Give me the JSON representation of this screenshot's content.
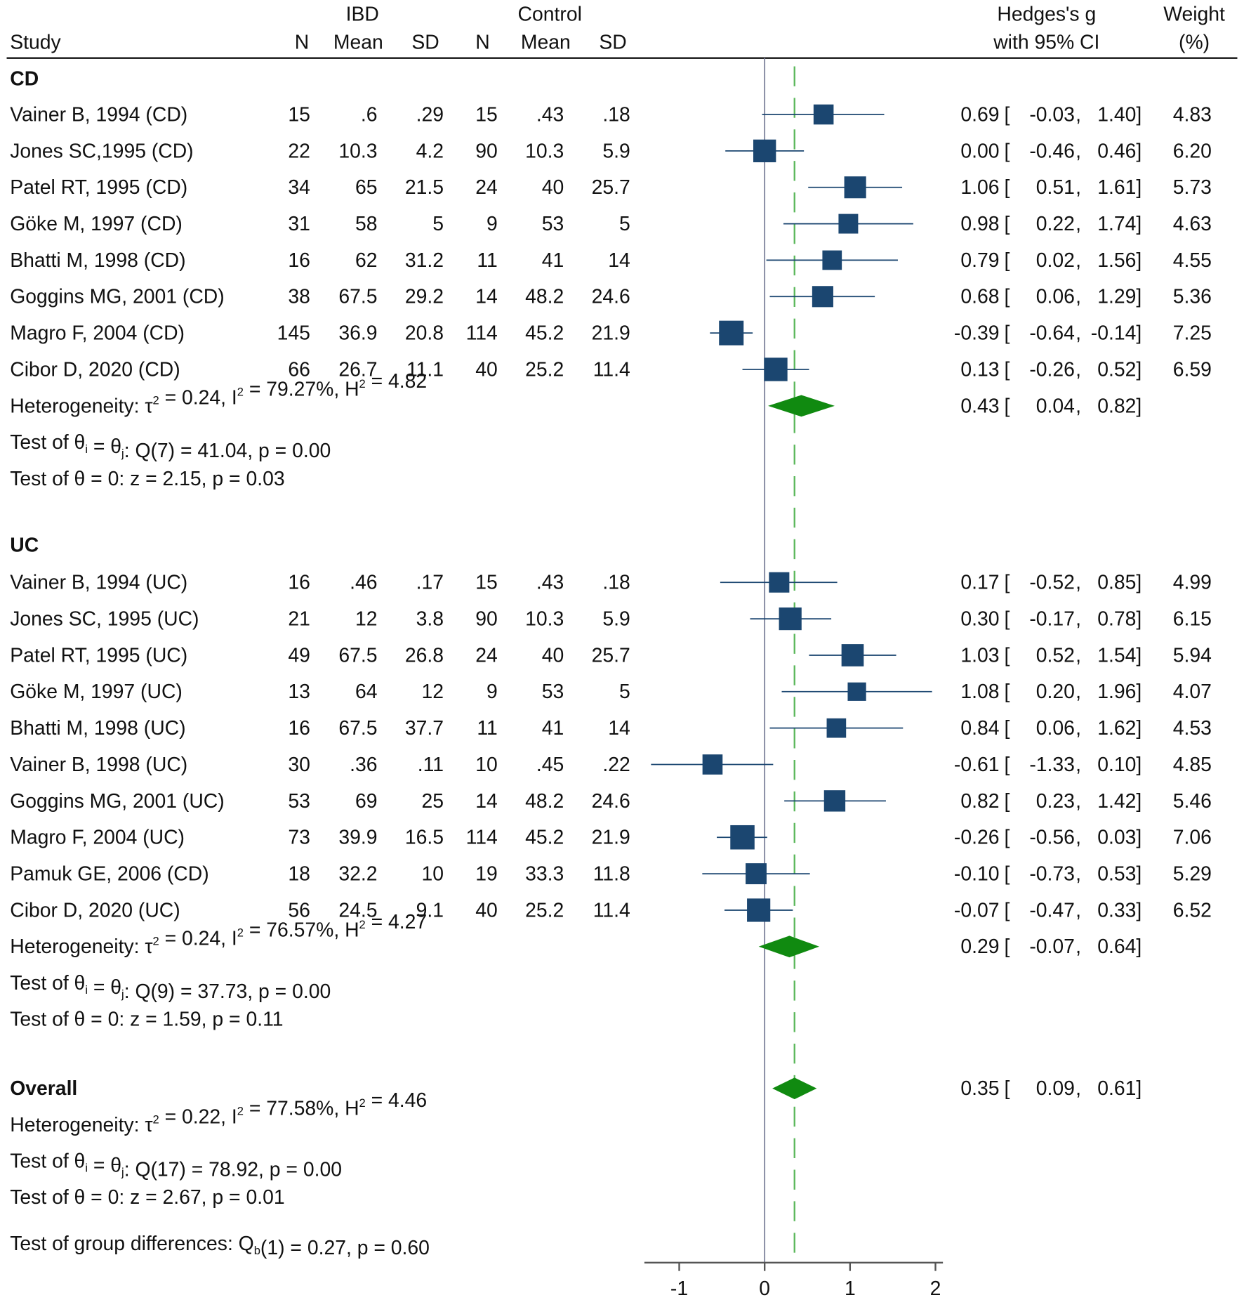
{
  "chart_data": {
    "type": "forest",
    "headers": {
      "study": "Study",
      "ibd": "IBD",
      "control": "Control",
      "n": "N",
      "mean": "Mean",
      "sd": "SD",
      "effect1": "Hedges's g",
      "effect2": "with 95% CI",
      "weight1": "Weight",
      "weight2": "(%)"
    },
    "x_ticks": [
      -1,
      0,
      1,
      2
    ],
    "xlim": [
      -1.3,
      2.05
    ],
    "overall_line": 0.35,
    "colors": {
      "square": "#1b4670",
      "diamond": "#108a10",
      "dash": "#5cb85c",
      "zero": "#7a7f9a"
    },
    "groups": [
      {
        "label": "CD",
        "studies": [
          {
            "name": "Vainer B, 1994 (CD)",
            "n1": "15",
            "m1": ".6",
            "sd1": ".29",
            "n2": "15",
            "m2": ".43",
            "sd2": ".18",
            "g": 0.69,
            "lo": -0.03,
            "hi": 1.4,
            "w": 4.83,
            "gs": "0.69",
            "los": "-0.03",
            "his": "1.40",
            "ws": "4.83"
          },
          {
            "name": "Jones SC,1995 (CD)",
            "n1": "22",
            "m1": "10.3",
            "sd1": "4.2",
            "n2": "90",
            "m2": "10.3",
            "sd2": "5.9",
            "g": 0.0,
            "lo": -0.46,
            "hi": 0.46,
            "w": 6.2,
            "gs": "0.00",
            "los": "-0.46",
            "his": "0.46",
            "ws": "6.20"
          },
          {
            "name": "Patel RT, 1995 (CD)",
            "n1": "34",
            "m1": "65",
            "sd1": "21.5",
            "n2": "24",
            "m2": "40",
            "sd2": "25.7",
            "g": 1.06,
            "lo": 0.51,
            "hi": 1.61,
            "w": 5.73,
            "gs": "1.06",
            "los": "0.51",
            "his": "1.61",
            "ws": "5.73"
          },
          {
            "name": "Göke M, 1997 (CD)",
            "n1": "31",
            "m1": "58",
            "sd1": "5",
            "n2": "9",
            "m2": "53",
            "sd2": "5",
            "g": 0.98,
            "lo": 0.22,
            "hi": 1.74,
            "w": 4.63,
            "gs": "0.98",
            "los": "0.22",
            "his": "1.74",
            "ws": "4.63"
          },
          {
            "name": "Bhatti M, 1998 (CD)",
            "n1": "16",
            "m1": "62",
            "sd1": "31.2",
            "n2": "11",
            "m2": "41",
            "sd2": "14",
            "g": 0.79,
            "lo": 0.02,
            "hi": 1.56,
            "w": 4.55,
            "gs": "0.79",
            "los": "0.02",
            "his": "1.56",
            "ws": "4.55"
          },
          {
            "name": "Goggins MG, 2001 (CD)",
            "n1": "38",
            "m1": "67.5",
            "sd1": "29.2",
            "n2": "14",
            "m2": "48.2",
            "sd2": "24.6",
            "g": 0.68,
            "lo": 0.06,
            "hi": 1.29,
            "w": 5.36,
            "gs": "0.68",
            "los": "0.06",
            "his": "1.29",
            "ws": "5.36"
          },
          {
            "name": "Magro F, 2004 (CD)",
            "n1": "145",
            "m1": "36.9",
            "sd1": "20.8",
            "n2": "114",
            "m2": "45.2",
            "sd2": "21.9",
            "g": -0.39,
            "lo": -0.64,
            "hi": -0.14,
            "w": 7.25,
            "gs": "-0.39",
            "los": "-0.64",
            "his": "-0.14",
            "ws": "7.25"
          },
          {
            "name": "Cibor D, 2020 (CD)",
            "n1": "66",
            "m1": "26.7",
            "sd1": "11.1",
            "n2": "40",
            "m2": "25.2",
            "sd2": "11.4",
            "g": 0.13,
            "lo": -0.26,
            "hi": 0.52,
            "w": 6.59,
            "gs": "0.13",
            "los": "-0.26",
            "his": "0.52",
            "ws": "6.59"
          }
        ],
        "pooled": {
          "g": 0.43,
          "lo": 0.04,
          "hi": 0.82,
          "gs": "0.43",
          "los": "0.04",
          "his": "0.82"
        },
        "stats": [
          [
            {
              "t": "Heterogeneity: τ"
            },
            {
              "sup": "2"
            },
            {
              "t": " = 0.24, I"
            },
            {
              "sup": "2"
            },
            {
              "t": " = 79.27%, H"
            },
            {
              "sup": "2"
            },
            {
              "t": " = 4.82"
            }
          ],
          [
            {
              "t": "Test of θ"
            },
            {
              "sub": "i"
            },
            {
              "t": " = θ"
            },
            {
              "sub": "j"
            },
            {
              "t": ": Q(7) = 41.04, p = 0.00"
            }
          ],
          [
            {
              "t": "Test of θ = 0: z = 2.15, p = 0.03"
            }
          ]
        ]
      },
      {
        "label": "UC",
        "studies": [
          {
            "name": "Vainer B, 1994 (UC)",
            "n1": "16",
            "m1": ".46",
            "sd1": ".17",
            "n2": "15",
            "m2": ".43",
            "sd2": ".18",
            "g": 0.17,
            "lo": -0.52,
            "hi": 0.85,
            "w": 4.99,
            "gs": "0.17",
            "los": "-0.52",
            "his": "0.85",
            "ws": "4.99"
          },
          {
            "name": "Jones SC, 1995 (UC)",
            "n1": "21",
            "m1": "12",
            "sd1": "3.8",
            "n2": "90",
            "m2": "10.3",
            "sd2": "5.9",
            "g": 0.3,
            "lo": -0.17,
            "hi": 0.78,
            "w": 6.15,
            "gs": "0.30",
            "los": "-0.17",
            "his": "0.78",
            "ws": "6.15"
          },
          {
            "name": "Patel RT, 1995 (UC)",
            "n1": "49",
            "m1": "67.5",
            "sd1": "26.8",
            "n2": "24",
            "m2": "40",
            "sd2": "25.7",
            "g": 1.03,
            "lo": 0.52,
            "hi": 1.54,
            "w": 5.94,
            "gs": "1.03",
            "los": "0.52",
            "his": "1.54",
            "ws": "5.94"
          },
          {
            "name": "Göke M, 1997 (UC)",
            "n1": "13",
            "m1": "64",
            "sd1": "12",
            "n2": "9",
            "m2": "53",
            "sd2": "5",
            "g": 1.08,
            "lo": 0.2,
            "hi": 1.96,
            "w": 4.07,
            "gs": "1.08",
            "los": "0.20",
            "his": "1.96",
            "ws": "4.07"
          },
          {
            "name": "Bhatti M, 1998 (UC)",
            "n1": "16",
            "m1": "67.5",
            "sd1": "37.7",
            "n2": "11",
            "m2": "41",
            "sd2": "14",
            "g": 0.84,
            "lo": 0.06,
            "hi": 1.62,
            "w": 4.53,
            "gs": "0.84",
            "los": "0.06",
            "his": "1.62",
            "ws": "4.53"
          },
          {
            "name": "Vainer B, 1998 (UC)",
            "n1": "30",
            "m1": ".36",
            "sd1": ".11",
            "n2": "10",
            "m2": ".45",
            "sd2": ".22",
            "g": -0.61,
            "lo": -1.33,
            "hi": 0.1,
            "w": 4.85,
            "gs": "-0.61",
            "los": "-1.33",
            "his": "0.10",
            "ws": "4.85"
          },
          {
            "name": "Goggins MG, 2001 (UC)",
            "n1": "53",
            "m1": "69",
            "sd1": "25",
            "n2": "14",
            "m2": "48.2",
            "sd2": "24.6",
            "g": 0.82,
            "lo": 0.23,
            "hi": 1.42,
            "w": 5.46,
            "gs": "0.82",
            "los": "0.23",
            "his": "1.42",
            "ws": "5.46"
          },
          {
            "name": "Magro F, 2004 (UC)",
            "n1": "73",
            "m1": "39.9",
            "sd1": "16.5",
            "n2": "114",
            "m2": "45.2",
            "sd2": "21.9",
            "g": -0.26,
            "lo": -0.56,
            "hi": 0.03,
            "w": 7.06,
            "gs": "-0.26",
            "los": "-0.56",
            "his": "0.03",
            "ws": "7.06"
          },
          {
            "name": "Pamuk GE, 2006 (CD)",
            "n1": "18",
            "m1": "32.2",
            "sd1": "10",
            "n2": "19",
            "m2": "33.3",
            "sd2": "11.8",
            "g": -0.1,
            "lo": -0.73,
            "hi": 0.53,
            "w": 5.29,
            "gs": "-0.10",
            "los": "-0.73",
            "his": "0.53",
            "ws": "5.29"
          },
          {
            "name": "Cibor D, 2020 (UC)",
            "n1": "56",
            "m1": "24.5",
            "sd1": "9.1",
            "n2": "40",
            "m2": "25.2",
            "sd2": "11.4",
            "g": -0.07,
            "lo": -0.47,
            "hi": 0.33,
            "w": 6.52,
            "gs": "-0.07",
            "los": "-0.47",
            "his": "0.33",
            "ws": "6.52"
          }
        ],
        "pooled": {
          "g": 0.29,
          "lo": -0.07,
          "hi": 0.64,
          "gs": "0.29",
          "los": "-0.07",
          "his": "0.64"
        },
        "stats": [
          [
            {
              "t": "Heterogeneity: τ"
            },
            {
              "sup": "2"
            },
            {
              "t": " = 0.24, I"
            },
            {
              "sup": "2"
            },
            {
              "t": " = 76.57%, H"
            },
            {
              "sup": "2"
            },
            {
              "t": " = 4.27"
            }
          ],
          [
            {
              "t": "Test of θ"
            },
            {
              "sub": "i"
            },
            {
              "t": " = θ"
            },
            {
              "sub": "j"
            },
            {
              "t": ": Q(9) = 37.73, p = 0.00"
            }
          ],
          [
            {
              "t": "Test of θ = 0: z = 1.59, p = 0.11"
            }
          ]
        ]
      }
    ],
    "overall": {
      "label": "Overall",
      "g": 0.35,
      "lo": 0.09,
      "hi": 0.61,
      "gs": "0.35",
      "los": "0.09",
      "his": "0.61",
      "stats": [
        [
          {
            "t": "Heterogeneity: τ"
          },
          {
            "sup": "2"
          },
          {
            "t": " = 0.22, I"
          },
          {
            "sup": "2"
          },
          {
            "t": " = 77.58%, H"
          },
          {
            "sup": "2"
          },
          {
            "t": " = 4.46"
          }
        ],
        [
          {
            "t": "Test of θ"
          },
          {
            "sub": "i"
          },
          {
            "t": " = θ"
          },
          {
            "sub": "j"
          },
          {
            "t": ": Q(17) = 78.92, p = 0.00"
          }
        ],
        [
          {
            "t": "Test of θ = 0: z = 2.67, p = 0.01"
          }
        ]
      ]
    },
    "group_test": [
      {
        "t": "Test of group differences: Q"
      },
      {
        "sub": "b"
      },
      {
        "t": "(1) = 0.27, p = 0.60"
      }
    ]
  }
}
